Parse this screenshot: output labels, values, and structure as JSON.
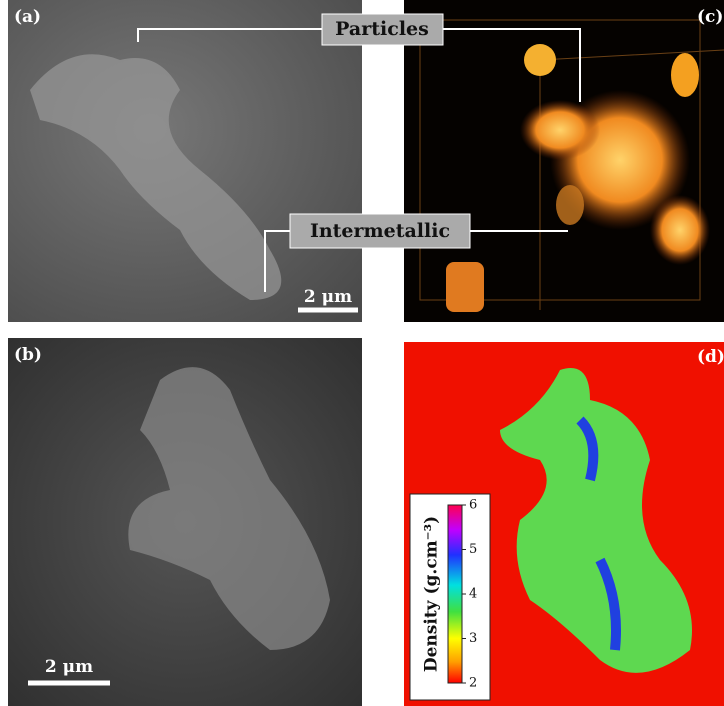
{
  "panels": [
    {
      "label": "(a)",
      "scale_bar": "2 μm"
    },
    {
      "label": "(b)",
      "scale_bar": "2 μm"
    },
    {
      "label": "(c)"
    },
    {
      "label": "(d)"
    }
  ],
  "annotations": [
    "Particles",
    "Intermetallic"
  ],
  "colorbar": {
    "title": "Density (g.cm⁻³)",
    "range": [
      2,
      6
    ],
    "ticks": [
      2,
      3,
      4,
      5,
      6
    ]
  }
}
